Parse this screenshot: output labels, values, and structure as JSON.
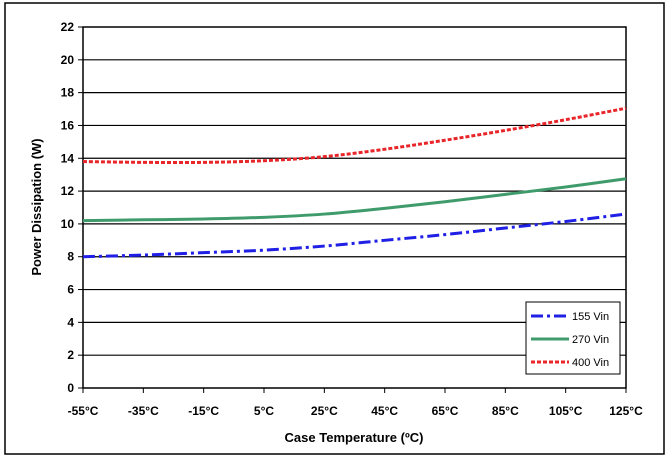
{
  "chart_data": {
    "type": "line",
    "title": "",
    "xlabel": "Case Temperature (ºC)",
    "ylabel": "Power Dissipation (W)",
    "x": [
      -55,
      -35,
      -15,
      5,
      25,
      45,
      65,
      85,
      105,
      125
    ],
    "x_tick_labels": [
      "-55°C",
      "-35°C",
      "-15°C",
      "5°C",
      "25°C",
      "45°C",
      "65°C",
      "85°C",
      "105°C",
      "125°C"
    ],
    "xlim": [
      -55,
      125
    ],
    "ylim": [
      0,
      22
    ],
    "y_ticks": [
      "0",
      "2",
      "4",
      "6",
      "8",
      "10",
      "12",
      "14",
      "16",
      "18",
      "20",
      "22"
    ],
    "grid": "horizontal",
    "legend_position": "bottom-right",
    "series": [
      {
        "name": "155 Vin",
        "color": "#1f1fe6",
        "style": "dash-dot",
        "values": [
          8.0,
          8.1,
          8.25,
          8.4,
          8.65,
          9.0,
          9.35,
          9.75,
          10.15,
          10.6
        ]
      },
      {
        "name": "270 Vin",
        "color": "#3f9b6b",
        "style": "solid",
        "values": [
          10.2,
          10.25,
          10.3,
          10.4,
          10.6,
          10.95,
          11.35,
          11.8,
          12.25,
          12.75
        ]
      },
      {
        "name": "400 Vin",
        "color": "#e8262a",
        "style": "dash",
        "values": [
          13.8,
          13.75,
          13.75,
          13.85,
          14.1,
          14.55,
          15.1,
          15.7,
          16.35,
          17.05
        ]
      }
    ]
  }
}
